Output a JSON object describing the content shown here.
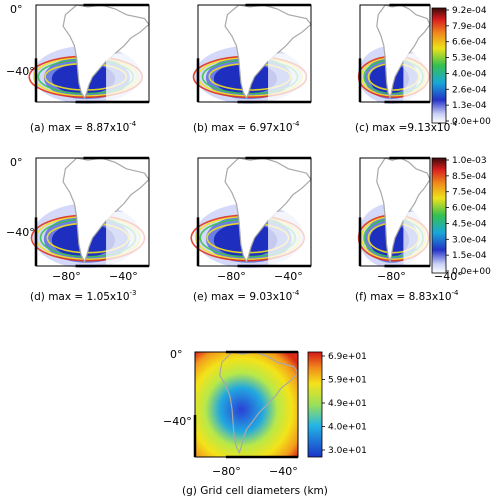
{
  "panels": [
    {
      "id": "a",
      "caption": "(a) max = 8.87x10",
      "exp": "-4",
      "show_y": true,
      "show_x": false
    },
    {
      "id": "b",
      "caption": "(b) max = 6.97x10",
      "exp": "-4",
      "show_y": false,
      "show_x": false
    },
    {
      "id": "c",
      "caption": "(c) max =9.13x10",
      "exp": "-4",
      "show_y": false,
      "show_x": false
    },
    {
      "id": "d",
      "caption": "(d) max = 1.05x10",
      "exp": "-3",
      "show_y": true,
      "show_x": true
    },
    {
      "id": "e",
      "caption": "(e) max = 9.03x10",
      "exp": "-4",
      "show_y": false,
      "show_x": true
    },
    {
      "id": "f",
      "caption": "(f) max = 8.83x10",
      "exp": "-4",
      "show_y": false,
      "show_x": true
    },
    {
      "id": "g",
      "caption": "(g) Grid cell diameters (km)",
      "exp": "",
      "show_y": true,
      "show_x": true
    }
  ],
  "axis_labels": {
    "y_top": "0°",
    "y_mid": "−40°",
    "x_left": "−80°",
    "x_right": "−40°"
  },
  "colorbars": [
    {
      "id": "cb1",
      "ticks": [
        "9.2e-04",
        "7.9e-04",
        "6.6e-04",
        "5.3e-04",
        "4.0e-04",
        "2.6e-04",
        "1.3e-04",
        "0.0e+00"
      ]
    },
    {
      "id": "cb2",
      "ticks": [
        "1.0e-03",
        "8.5e-04",
        "7.5e-04",
        "6.0e-04",
        "4.5e-04",
        "3.0e-04",
        "1.5e-04",
        "0.0e+00"
      ]
    },
    {
      "id": "cb3",
      "ticks": [
        "6.9e+01",
        "5.9e+01",
        "4.9e+01",
        "4.0e+01",
        "3.0e+01"
      ]
    }
  ],
  "colors": {
    "land": "#a8a8a8",
    "ocean_high": "#1e2fc0",
    "ocean_mid": "#5a6fe0",
    "ring_yellow": "#f2e21a",
    "ring_red": "#e0321c",
    "ring_green": "#3ac050"
  }
}
